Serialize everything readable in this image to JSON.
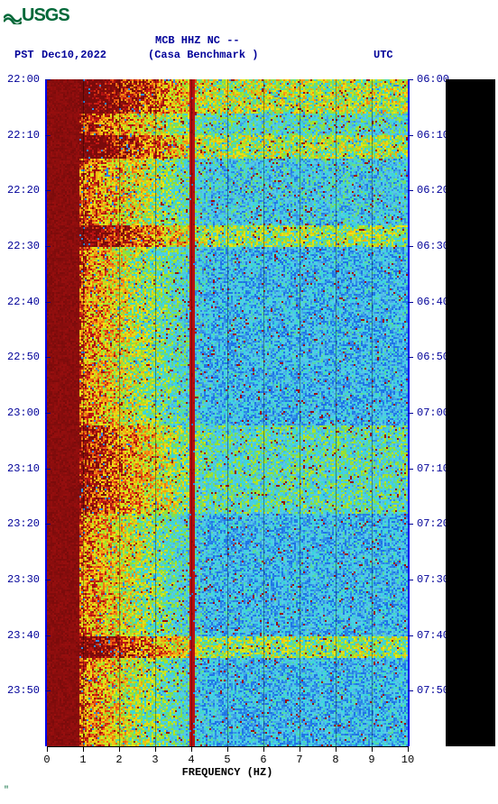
{
  "logo": {
    "text": "USGS",
    "color": "#006838"
  },
  "header": {
    "station_line": "MCB HHZ NC --",
    "location_line": "(Casa Benchmark )",
    "left_tz": "PST",
    "date": "Dec10,2022",
    "right_tz": "UTC"
  },
  "spectrogram": {
    "type": "spectrogram",
    "x_axis": {
      "label": "FREQUENCY (HZ)",
      "min": 0,
      "max": 10,
      "ticks": [
        0,
        1,
        2,
        3,
        4,
        5,
        6,
        7,
        8,
        9,
        10
      ]
    },
    "left_time_axis": {
      "ticks": [
        "22:00",
        "22:10",
        "22:20",
        "22:30",
        "22:40",
        "22:50",
        "23:00",
        "23:10",
        "23:20",
        "23:30",
        "23:40",
        "23:50"
      ]
    },
    "right_time_axis": {
      "ticks": [
        "06:00",
        "06:10",
        "06:20",
        "06:30",
        "06:40",
        "06:50",
        "07:00",
        "07:10",
        "07:20",
        "07:30",
        "07:40",
        "07:50"
      ]
    },
    "time_rows": 120,
    "freq_cols": 100,
    "gridlines_at_hz": [
      1,
      2,
      3,
      4,
      5,
      6,
      7,
      8,
      9
    ],
    "axis_border_color": "#0000ee",
    "palette": {
      "deep_red": "#7a0b0b",
      "red": "#c41414",
      "orange": "#f06a13",
      "yellow": "#f2e513",
      "ygreen": "#93e02e",
      "cyan": "#36d6e0",
      "blue": "#1e74e6",
      "sky": "#5cc9e8"
    },
    "bands": [
      {
        "row_start": 0,
        "row_end": 6,
        "intensity": 0.95
      },
      {
        "row_start": 6,
        "row_end": 10,
        "intensity": 0.55
      },
      {
        "row_start": 10,
        "row_end": 14,
        "intensity": 0.9
      },
      {
        "row_start": 14,
        "row_end": 26,
        "intensity": 0.4
      },
      {
        "row_start": 26,
        "row_end": 30,
        "intensity": 0.85
      },
      {
        "row_start": 30,
        "row_end": 62,
        "intensity": 0.3
      },
      {
        "row_start": 62,
        "row_end": 78,
        "intensity": 0.6
      },
      {
        "row_start": 78,
        "row_end": 100,
        "intensity": 0.3
      },
      {
        "row_start": 100,
        "row_end": 104,
        "intensity": 0.85
      },
      {
        "row_start": 104,
        "row_end": 120,
        "intensity": 0.3
      }
    ],
    "low_freq_saturated_hz": 1.0,
    "mid_vertical_line_hz": 4.0,
    "background_color": "#ffffff"
  },
  "colorbar": {
    "strip_color": "#000000"
  }
}
